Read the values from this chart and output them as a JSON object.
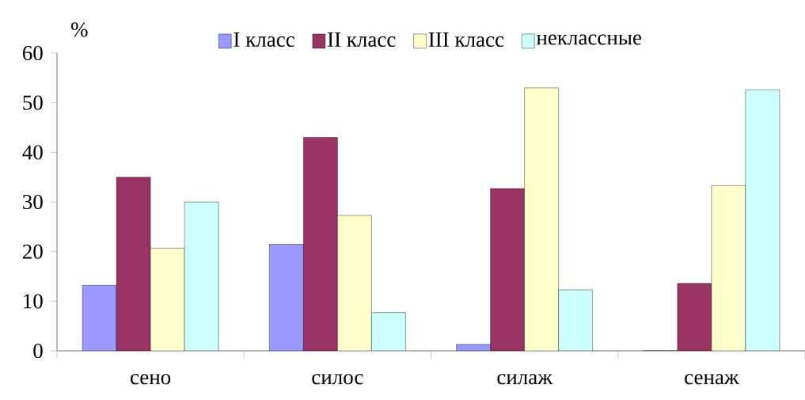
{
  "chart_data": {
    "type": "bar",
    "ylabel": "%",
    "categories": [
      "сено",
      "силос",
      "силаж",
      "сенаж"
    ],
    "series": [
      {
        "name": "I класс",
        "color": "#9999ff",
        "values": [
          13.2,
          21.5,
          1.3,
          0
        ]
      },
      {
        "name": "II класс",
        "color": "#993366",
        "values": [
          35,
          43,
          32.7,
          13.6
        ]
      },
      {
        "name": "III класс",
        "color": "#ffffcc",
        "values": [
          20.7,
          27.3,
          53,
          33.3
        ]
      },
      {
        "name": "неклассные",
        "color": "#ccffff",
        "values": [
          30,
          7.7,
          12.3,
          52.6
        ]
      }
    ],
    "ylim": [
      0,
      60
    ],
    "yticks": [
      0,
      10,
      20,
      30,
      40,
      50,
      60
    ],
    "legend": "top"
  }
}
